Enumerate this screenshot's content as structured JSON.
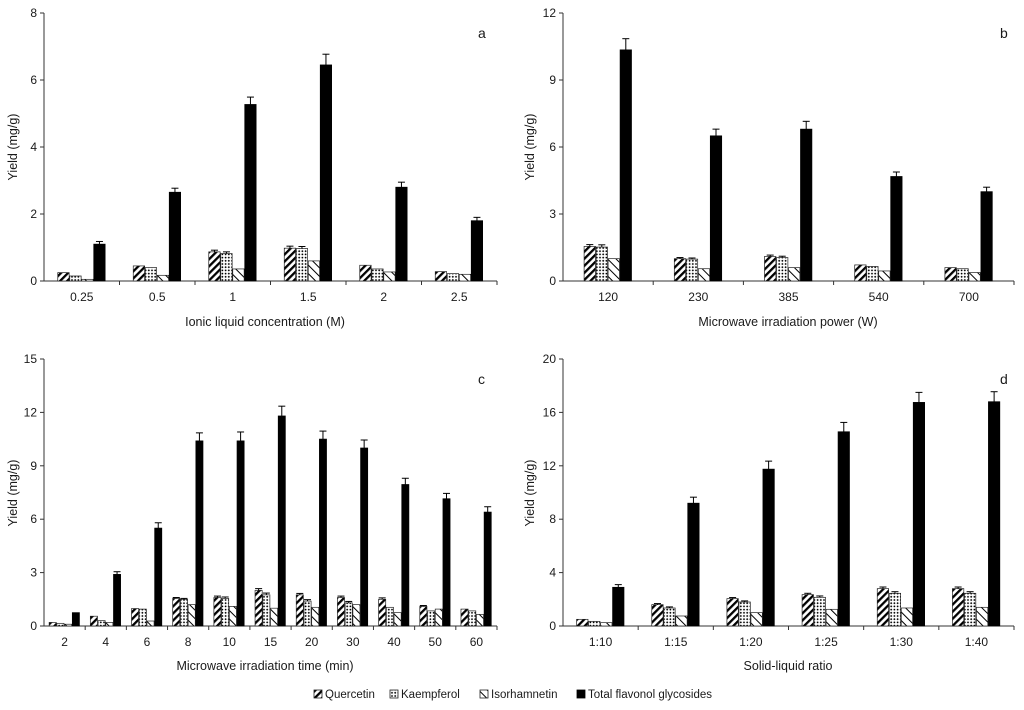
{
  "figure": {
    "colors": {
      "axis": "#333333",
      "bar_edge": "#222222",
      "total": "#000000",
      "background": "#ffffff"
    }
  },
  "legend": {
    "items": [
      {
        "name": "Quercetin",
        "pattern": "diagonal-stripes"
      },
      {
        "name": "Kaempferol",
        "pattern": "dots"
      },
      {
        "name": "Isorhamnetin",
        "pattern": "sparse-diagonal"
      },
      {
        "name": "Total flavonol glycosides",
        "pattern": "solid-black"
      }
    ]
  },
  "chart_data": [
    {
      "panel": "a",
      "type": "bar",
      "xlabel": "Ionic liquid concentration (M)",
      "ylabel": "Yield (mg/g)",
      "ylim": [
        0,
        8
      ],
      "yticks": [
        0,
        2,
        4,
        6,
        8
      ],
      "categories": [
        "0.25",
        "0.5",
        "1",
        "1.5",
        "2",
        "2.5"
      ],
      "series": [
        {
          "name": "Quercetin",
          "values": [
            0.25,
            0.45,
            0.87,
            0.98,
            0.47,
            0.28
          ],
          "errors": [
            0,
            0,
            0.05,
            0.06,
            0,
            0
          ]
        },
        {
          "name": "Kaempferol",
          "values": [
            0.15,
            0.4,
            0.82,
            0.97,
            0.36,
            0.22
          ],
          "errors": [
            0,
            0,
            0.05,
            0.06,
            0,
            0
          ]
        },
        {
          "name": "Isorhamnetin",
          "values": [
            0.05,
            0.17,
            0.36,
            0.6,
            0.27,
            0.2
          ],
          "errors": [
            0,
            0,
            0,
            0,
            0,
            0
          ]
        },
        {
          "name": "Total flavonol glycosides",
          "values": [
            1.1,
            2.65,
            5.27,
            6.45,
            2.8,
            1.8
          ],
          "errors": [
            0.08,
            0.12,
            0.22,
            0.32,
            0.15,
            0.1
          ]
        }
      ]
    },
    {
      "panel": "b",
      "type": "bar",
      "xlabel": "Microwave irradiation power (W)",
      "ylabel": "Yield (mg/g)",
      "ylim": [
        0,
        12
      ],
      "yticks": [
        0,
        3,
        6,
        9,
        12
      ],
      "categories": [
        "120",
        "230",
        "385",
        "540",
        "700"
      ],
      "series": [
        {
          "name": "Quercetin",
          "values": [
            1.55,
            1.0,
            1.1,
            0.72,
            0.6
          ],
          "errors": [
            0.08,
            0.05,
            0.06,
            0,
            0
          ]
        },
        {
          "name": "Kaempferol",
          "values": [
            1.52,
            0.98,
            1.05,
            0.65,
            0.55
          ],
          "errors": [
            0.1,
            0.05,
            0.06,
            0,
            0
          ]
        },
        {
          "name": "Isorhamnetin",
          "values": [
            1.0,
            0.55,
            0.6,
            0.45,
            0.38
          ],
          "errors": [
            0,
            0,
            0,
            0,
            0
          ]
        },
        {
          "name": "Total flavonol glycosides",
          "values": [
            10.35,
            6.5,
            6.8,
            4.68,
            4.0
          ],
          "errors": [
            0.5,
            0.3,
            0.35,
            0.2,
            0.2
          ]
        }
      ]
    },
    {
      "panel": "c",
      "type": "bar",
      "xlabel": "Microwave irradiation time (min)",
      "ylabel": "Yield (mg/g)",
      "ylim": [
        0,
        15
      ],
      "yticks": [
        0,
        3,
        6,
        9,
        12,
        15
      ],
      "categories": [
        "2",
        "4",
        "6",
        "8",
        "10",
        "15",
        "20",
        "30",
        "40",
        "50",
        "60"
      ],
      "series": [
        {
          "name": "Quercetin",
          "values": [
            0.2,
            0.55,
            0.98,
            1.55,
            1.6,
            2.0,
            1.75,
            1.6,
            1.5,
            1.1,
            0.95
          ],
          "errors": [
            0,
            0,
            0,
            0.05,
            0.08,
            0.1,
            0.08,
            0.08,
            0.08,
            0.05,
            0
          ]
        },
        {
          "name": "Kaempferol",
          "values": [
            0.15,
            0.3,
            0.95,
            1.5,
            1.55,
            1.75,
            1.4,
            1.3,
            1.05,
            0.85,
            0.85
          ],
          "errors": [
            0,
            0,
            0,
            0.05,
            0.08,
            0.1,
            0.08,
            0.08,
            0,
            0,
            0
          ]
        },
        {
          "name": "Isorhamnetin",
          "values": [
            0.1,
            0.2,
            0.28,
            1.2,
            1.1,
            1.0,
            1.05,
            1.2,
            0.75,
            0.95,
            0.65
          ],
          "errors": [
            0,
            0,
            0,
            0,
            0,
            0,
            0,
            0,
            0,
            0,
            0
          ]
        },
        {
          "name": "Total flavonol glycosides",
          "values": [
            0.75,
            2.9,
            5.5,
            10.4,
            10.4,
            11.8,
            10.5,
            10.0,
            7.95,
            7.15,
            6.4
          ],
          "errors": [
            0,
            0.15,
            0.3,
            0.45,
            0.5,
            0.55,
            0.45,
            0.45,
            0.35,
            0.3,
            0.3
          ]
        }
      ]
    },
    {
      "panel": "d",
      "type": "bar",
      "xlabel": "Solid-liquid ratio",
      "ylabel": "Yield (mg/g)",
      "ylim": [
        0,
        20
      ],
      "yticks": [
        0,
        4,
        8,
        12,
        16,
        20
      ],
      "categories": [
        "1:10",
        "1:15",
        "1:20",
        "1:25",
        "1:30",
        "1:40"
      ],
      "series": [
        {
          "name": "Quercetin",
          "values": [
            0.5,
            1.6,
            2.05,
            2.35,
            2.8,
            2.8
          ],
          "errors": [
            0,
            0.08,
            0.08,
            0.1,
            0.12,
            0.12
          ]
        },
        {
          "name": "Kaempferol",
          "values": [
            0.35,
            1.35,
            1.8,
            2.15,
            2.45,
            2.45
          ],
          "errors": [
            0,
            0.08,
            0.08,
            0.1,
            0.12,
            0.12
          ]
        },
        {
          "name": "Isorhamnetin",
          "values": [
            0.25,
            0.75,
            1.0,
            1.25,
            1.35,
            1.4
          ],
          "errors": [
            0,
            0,
            0,
            0,
            0,
            0
          ]
        },
        {
          "name": "Total flavonol glycosides",
          "values": [
            2.9,
            9.2,
            11.75,
            14.55,
            16.75,
            16.8
          ],
          "errors": [
            0.2,
            0.45,
            0.6,
            0.7,
            0.75,
            0.75
          ]
        }
      ]
    }
  ]
}
